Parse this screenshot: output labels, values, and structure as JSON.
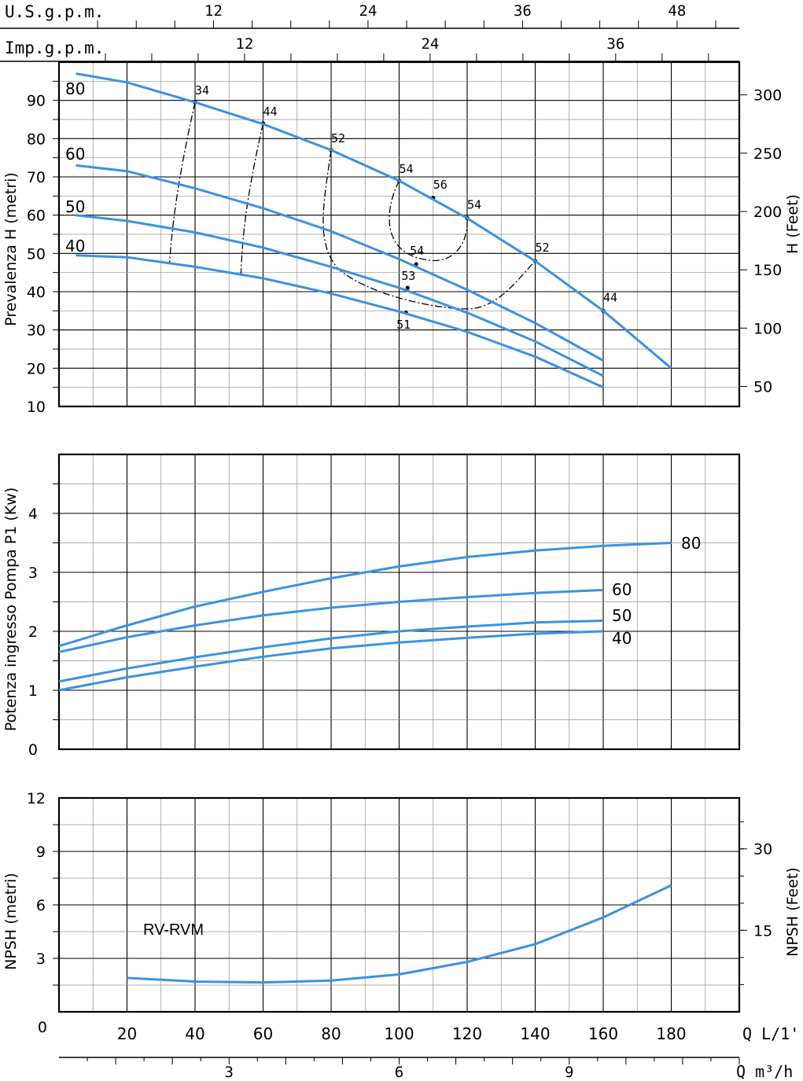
{
  "colors": {
    "curve": "#3a92e3",
    "frame": "#000000",
    "grid_major": "#000000",
    "grid_minor": "#909090",
    "efficiency": "#000000"
  },
  "chart_data": [
    {
      "type": "line",
      "title": "Prevalenza",
      "ylabel": "Prevalenza H (metri)",
      "ylabel_right": "H (Feet)",
      "xlabel": "Q L/1'",
      "xlim": [
        0,
        200
      ],
      "ylim": [
        10,
        100
      ],
      "y_ticks": [
        "10",
        "20",
        "30",
        "40",
        "50",
        "60",
        "70",
        "80",
        "90"
      ],
      "y_ticks_right": [
        "50",
        "100",
        "150",
        "200",
        "250",
        "300"
      ],
      "series": [
        {
          "name": "80",
          "x": [
            5,
            20,
            40,
            60,
            80,
            100,
            120,
            140,
            160,
            180
          ],
          "y": [
            97,
            94.7,
            89.5,
            83.8,
            77,
            69,
            59.2,
            48,
            35,
            20
          ]
        },
        {
          "name": "60",
          "x": [
            5,
            20,
            40,
            60,
            80,
            100,
            120,
            140,
            160
          ],
          "y": [
            73,
            71.5,
            67,
            61.8,
            55.8,
            48.5,
            40.5,
            31.8,
            22
          ]
        },
        {
          "name": "50",
          "x": [
            5,
            20,
            40,
            60,
            80,
            100,
            120,
            140,
            160
          ],
          "y": [
            60,
            58.5,
            55.5,
            51.5,
            46.5,
            41,
            34.5,
            27,
            18
          ]
        },
        {
          "name": "40",
          "x": [
            5,
            20,
            40,
            60,
            80,
            100,
            120,
            140,
            160
          ],
          "y": [
            49.5,
            49,
            46.5,
            43.5,
            39.5,
            34.8,
            29.5,
            23,
            15
          ]
        }
      ],
      "efficiency_points": [
        {
          "label": "34",
          "x": 40,
          "y": 89.5
        },
        {
          "label": "44",
          "x": 60,
          "y": 84
        },
        {
          "label": "52",
          "x": 80,
          "y": 77
        },
        {
          "label": "54",
          "x": 100,
          "y": 69
        },
        {
          "label": "56",
          "x": 110,
          "y": 64.5
        },
        {
          "label": "54",
          "x": 120,
          "y": 59.2
        },
        {
          "label": "52",
          "x": 140,
          "y": 48
        },
        {
          "label": "44",
          "x": 160,
          "y": 35
        },
        {
          "label": "54",
          "x": 105,
          "y": 47.2
        },
        {
          "label": "53",
          "x": 102.5,
          "y": 41
        },
        {
          "label": "51",
          "x": 102,
          "y": 34.5
        }
      ]
    },
    {
      "type": "line",
      "title": "Potenza",
      "ylabel": "Potenza ingresso Pompa P1 (Kw)",
      "xlim": [
        0,
        200
      ],
      "ylim": [
        0,
        5
      ],
      "y_ticks": [
        "0",
        "1",
        "2",
        "3",
        "4"
      ],
      "series": [
        {
          "name": "80",
          "x": [
            0,
            20,
            40,
            60,
            80,
            100,
            120,
            140,
            160,
            180
          ],
          "y": [
            1.75,
            2.1,
            2.42,
            2.67,
            2.9,
            3.1,
            3.26,
            3.37,
            3.45,
            3.5
          ]
        },
        {
          "name": "60",
          "x": [
            0,
            20,
            40,
            60,
            80,
            100,
            120,
            140,
            160
          ],
          "y": [
            1.65,
            1.9,
            2.1,
            2.27,
            2.4,
            2.5,
            2.58,
            2.65,
            2.7
          ]
        },
        {
          "name": "50",
          "x": [
            0,
            20,
            40,
            60,
            80,
            100,
            120,
            140,
            160
          ],
          "y": [
            1.15,
            1.37,
            1.56,
            1.73,
            1.88,
            2.0,
            2.08,
            2.15,
            2.18
          ]
        },
        {
          "name": "40",
          "x": [
            0,
            20,
            40,
            60,
            80,
            100,
            120,
            140,
            160
          ],
          "y": [
            1.0,
            1.22,
            1.4,
            1.57,
            1.71,
            1.81,
            1.89,
            1.96,
            2.0
          ]
        }
      ]
    },
    {
      "type": "line",
      "title": "NPSH",
      "ylabel": "NPSH (metri)",
      "ylabel_right": "NPSH (Feet)",
      "annotation": "RV-RVM",
      "xlim": [
        0,
        200
      ],
      "ylim": [
        0,
        12
      ],
      "y_ticks": [
        "0",
        "3",
        "6",
        "9",
        "12"
      ],
      "y_ticks_right": [
        "15",
        "30"
      ],
      "series": [
        {
          "name": "RV-RVM",
          "x": [
            20,
            40,
            60,
            80,
            100,
            120,
            140,
            160,
            180
          ],
          "y": [
            1.9,
            1.7,
            1.65,
            1.75,
            2.1,
            2.8,
            3.8,
            5.3,
            7.1
          ]
        }
      ]
    }
  ],
  "axes": {
    "x_lmin_ticks": [
      "20",
      "40",
      "60",
      "80",
      "100",
      "120",
      "140",
      "160",
      "180"
    ],
    "x_lmin_label": "Q L/1'",
    "x_m3h_label": "Q m³/h",
    "x_m3h_ticks": [
      "3",
      "6",
      "9"
    ],
    "x_m3h_values": [
      3,
      6,
      9
    ],
    "usgpm_label": "U.S.g.p.m.",
    "usgpm_ticks": [
      "12",
      "24",
      "36",
      "48"
    ],
    "usgpm_values": [
      12,
      24,
      36,
      48
    ],
    "impgpm_label": "Imp.g.p.m.",
    "impgpm_ticks": [
      "12",
      "24",
      "36"
    ],
    "impgpm_values": [
      12,
      24,
      36
    ]
  }
}
